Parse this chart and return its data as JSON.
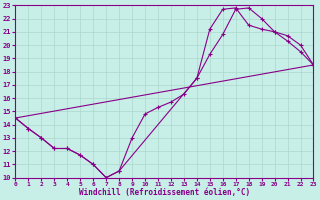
{
  "xlabel": "Windchill (Refroidissement éolien,°C)",
  "bg_color": "#c8eee8",
  "line_color": "#880088",
  "grid_color": "#aad8cc",
  "xlim": [
    0,
    23
  ],
  "ylim": [
    10,
    23
  ],
  "yticks": [
    10,
    11,
    12,
    13,
    14,
    15,
    16,
    17,
    18,
    19,
    20,
    21,
    22,
    23
  ],
  "xticks": [
    0,
    1,
    2,
    3,
    4,
    5,
    6,
    7,
    8,
    9,
    10,
    11,
    12,
    13,
    14,
    15,
    16,
    17,
    18,
    19,
    20,
    21,
    22,
    23
  ],
  "curve1_x": [
    0,
    1,
    2,
    3,
    4,
    5,
    6,
    7,
    8,
    9,
    10,
    11,
    12,
    13,
    14,
    15,
    16,
    17,
    18,
    19,
    20,
    21,
    22,
    23
  ],
  "curve1_y": [
    14.5,
    13.7,
    13.0,
    12.2,
    12.2,
    11.7,
    11.0,
    10.0,
    10.5,
    13.0,
    14.8,
    15.3,
    15.7,
    16.3,
    17.5,
    19.3,
    20.8,
    22.7,
    22.8,
    22.0,
    21.0,
    20.3,
    19.5,
    18.5
  ],
  "curve2_x": [
    0,
    1,
    2,
    3,
    4,
    5,
    6,
    7,
    8,
    14,
    15,
    16,
    17,
    18,
    19,
    20,
    21,
    22,
    23
  ],
  "curve2_y": [
    14.5,
    13.7,
    13.0,
    12.2,
    12.2,
    11.7,
    11.0,
    10.0,
    10.5,
    17.5,
    21.2,
    22.7,
    22.8,
    21.5,
    21.2,
    21.0,
    20.7,
    20.0,
    18.5
  ],
  "line3_x": [
    0,
    23
  ],
  "line3_y": [
    14.5,
    18.5
  ]
}
